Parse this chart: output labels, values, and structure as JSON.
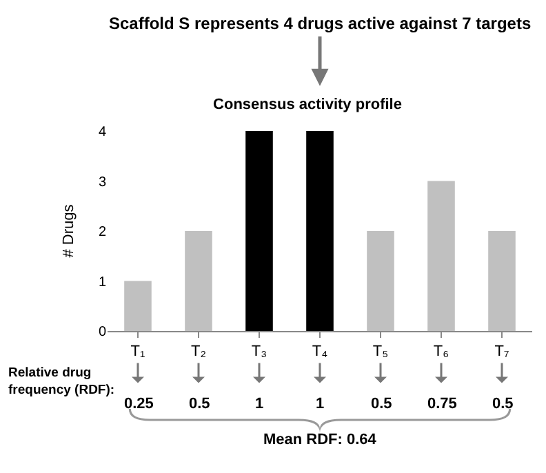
{
  "chart_data": {
    "type": "bar",
    "title": "Consensus activity profile",
    "ylabel": "# Drugs",
    "categories": [
      "T₁",
      "T₂",
      "T₃",
      "T₄",
      "T₅",
      "T₆",
      "T₇"
    ],
    "values": [
      1,
      2,
      4,
      4,
      2,
      3,
      2
    ],
    "colors": [
      "#c0c0c0",
      "#c0c0c0",
      "#000000",
      "#000000",
      "#c0c0c0",
      "#c0c0c0",
      "#c0c0c0"
    ],
    "ylim": [
      0,
      4
    ],
    "yticks": [
      0,
      1,
      2,
      3,
      4
    ],
    "legend": false,
    "annotations": [
      "Scaffold S represents 4 drugs active against 7 targets",
      "Relative drug frequency (RDF):",
      {
        "text": "0.25",
        "x": "T₁"
      },
      {
        "text": "0.5",
        "x": "T₂"
      },
      {
        "text": "1",
        "x": "T₃"
      },
      {
        "text": "1",
        "x": "T₄"
      },
      {
        "text": "0.5",
        "x": "T₅"
      },
      {
        "text": "0.75",
        "x": "T₆"
      },
      {
        "text": "0.5",
        "x": "T₇"
      },
      "Mean RDF: 0.64"
    ]
  }
}
